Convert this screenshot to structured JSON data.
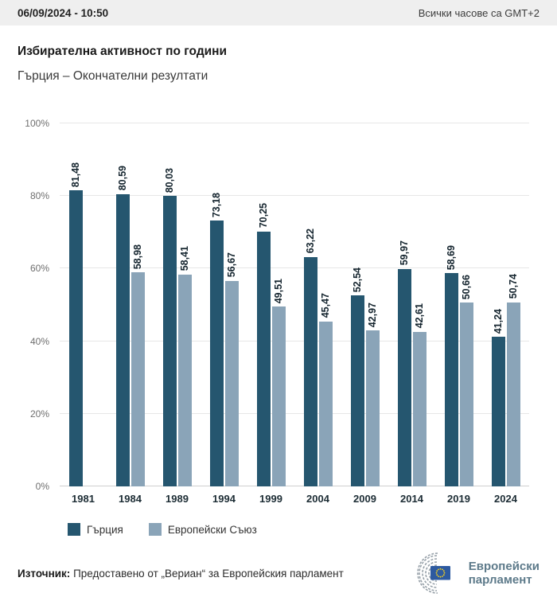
{
  "header": {
    "datetime": "06/09/2024 - 10:50",
    "timezone_note": "Всички часове са GMT+2"
  },
  "titles": {
    "title": "Избирателна активност по години",
    "subtitle": "Гърция – Окончателни резултати"
  },
  "chart_data": {
    "type": "bar",
    "title": "Избирателна активност по години",
    "subtitle": "Гърция – Окончателни резултати",
    "categories": [
      "1981",
      "1984",
      "1989",
      "1994",
      "1999",
      "2004",
      "2009",
      "2014",
      "2019",
      "2024"
    ],
    "series": [
      {
        "name": "Гърция",
        "color": "#25566f",
        "values": [
          81.48,
          80.59,
          80.03,
          73.18,
          70.25,
          63.22,
          52.54,
          59.97,
          58.69,
          41.24
        ]
      },
      {
        "name": "Европейски Съюз",
        "color": "#8aa4b8",
        "values": [
          null,
          58.98,
          58.41,
          56.67,
          49.51,
          45.47,
          42.97,
          42.61,
          50.66,
          50.74
        ]
      }
    ],
    "value_label_decimal_separator": ",",
    "ylim": [
      0,
      100
    ],
    "yticks": [
      "0%",
      "20%",
      "40%",
      "60%",
      "80%",
      "100%"
    ],
    "grid": true,
    "legend_position": "bottom"
  },
  "footer": {
    "source_label": "Източник:",
    "source_text": " Предоставено от „Вериан“ за Европейския парламент"
  },
  "logo": {
    "line1": "Европейски",
    "line2": "парламент"
  },
  "colors": {
    "greece_bar": "#25566f",
    "eu_bar": "#8aa4b8",
    "topbar_background": "#efefef",
    "gridline": "#e7e7e7",
    "flag_blue": "#2d5aa0",
    "flag_star_yellow": "#ffd617",
    "logo_text": "#5d7a8a"
  }
}
